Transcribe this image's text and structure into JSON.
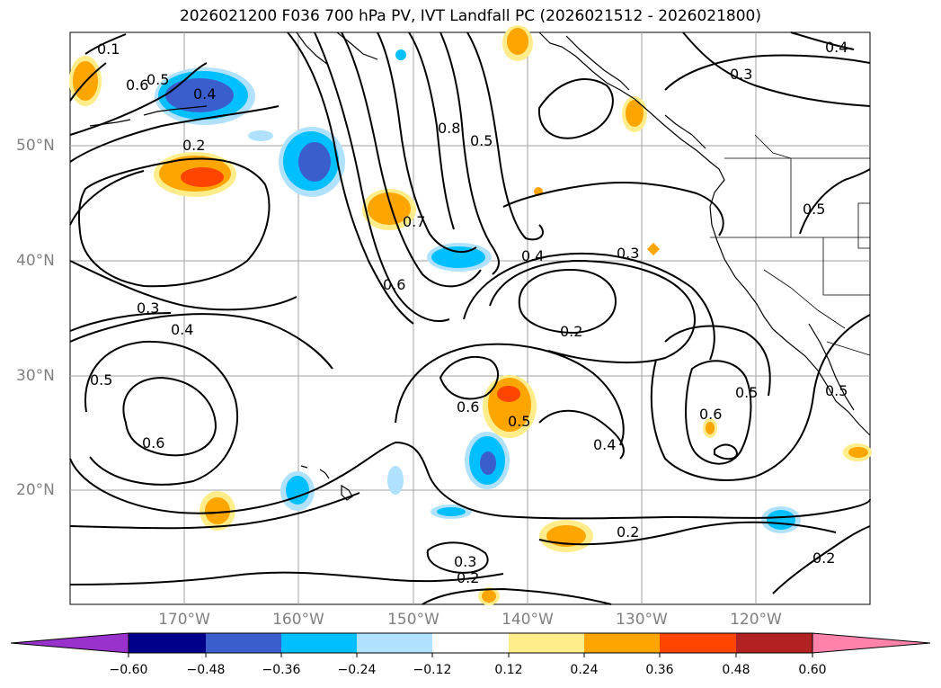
{
  "title": "2026021200 F036 700 hPa PV, IVT Landfall PC (2026021512 - 2026021800)",
  "lat_labels": [
    "50°N",
    "40°N",
    "30°N",
    "20°N"
  ],
  "lon_labels": [
    "170°W",
    "160°W",
    "150°W",
    "140°W",
    "130°W",
    "120°W"
  ],
  "colorbar": {
    "ticks": [
      "−0.60",
      "−0.48",
      "−0.36",
      "−0.24",
      "−0.12",
      "0.12",
      "0.24",
      "0.36",
      "0.48",
      "0.60"
    ],
    "colors": [
      "#9932cc",
      "#00008b",
      "#3a5fcd",
      "#00bfff",
      "#b0e2ff",
      "#ffffff",
      "#ffec8b",
      "#ffa500",
      "#ff4500",
      "#b22222",
      "#ff82ab"
    ]
  },
  "contour_labels": [
    "0.1",
    "0.6",
    "0.5",
    "0.4",
    "0.2",
    "0.8",
    "0.5",
    "0.7",
    "0.6",
    "0.4",
    "0.3",
    "0.2",
    "0.3",
    "0.4",
    "0.5",
    "0.6",
    "0.6",
    "0.5",
    "0.4",
    "0.6",
    "0.5",
    "0.5",
    "0.3",
    "0.2",
    "0.2",
    "0.2",
    "0.3",
    "0.4",
    "0.5"
  ]
}
